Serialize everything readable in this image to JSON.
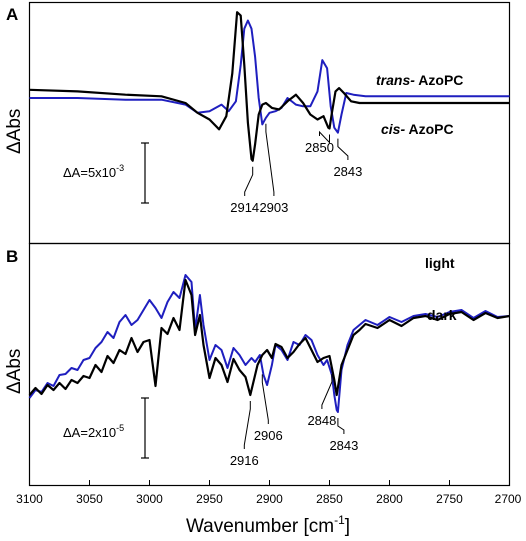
{
  "chart_data": [
    {
      "type": "line",
      "panel_label": "A",
      "ylabel": "ΔAbs",
      "xlim": [
        3100,
        2700
      ],
      "scalebar": {
        "label": "ΔA=5x10",
        "exponent": "-3"
      },
      "series": [
        {
          "name": "trans- AzoPC",
          "name_italic": "trans-",
          "name_rest": " AzoPC",
          "color": "#1f1fbf",
          "x": [
            3100,
            3060,
            3020,
            2990,
            2970,
            2960,
            2950,
            2940,
            2934,
            2928,
            2924,
            2921,
            2918,
            2915,
            2912,
            2909,
            2906,
            2903,
            2900,
            2895,
            2890,
            2885,
            2878,
            2872,
            2866,
            2860,
            2856,
            2852,
            2849,
            2846,
            2843,
            2840,
            2836,
            2830,
            2820,
            2800,
            2760,
            2720,
            2700
          ],
          "y": [
            0.0,
            0.0,
            -0.1,
            -0.1,
            -0.4,
            -0.9,
            -0.8,
            -0.4,
            -0.8,
            -0.2,
            2.0,
            4.2,
            4.7,
            4.2,
            2.5,
            0.0,
            -1.6,
            -1.2,
            -0.9,
            -0.8,
            -0.6,
            0.0,
            -0.4,
            -0.5,
            -0.5,
            0.4,
            2.3,
            1.8,
            -0.5,
            -1.8,
            -2.1,
            -1.0,
            0.3,
            0.2,
            0.1,
            0.1,
            0.1,
            0.1,
            0.1
          ]
        },
        {
          "name": "cis- AzoPC",
          "name_italic": "cis-",
          "name_rest": " AzoPC",
          "color": "#000000",
          "x": [
            3100,
            3060,
            3020,
            2990,
            2970,
            2960,
            2950,
            2942,
            2936,
            2931,
            2927,
            2924,
            2921,
            2918,
            2915,
            2914,
            2912,
            2909,
            2906,
            2903,
            2898,
            2892,
            2885,
            2878,
            2872,
            2866,
            2860,
            2855,
            2851,
            2850,
            2848,
            2845,
            2842,
            2838,
            2832,
            2825,
            2815,
            2780,
            2740,
            2700
          ],
          "y": [
            0.5,
            0.4,
            0.2,
            0.1,
            -0.3,
            -0.9,
            -1.3,
            -1.9,
            -1.1,
            1.5,
            5.2,
            5.0,
            2.0,
            -1.5,
            -3.7,
            -3.8,
            -2.8,
            -1.0,
            -0.4,
            -0.3,
            -0.6,
            -0.7,
            -0.2,
            0.2,
            -0.3,
            -1.0,
            -1.3,
            -1.1,
            -1.8,
            -1.85,
            -0.9,
            0.4,
            0.6,
            0.3,
            -0.2,
            -0.3,
            -0.3,
            -0.3,
            -0.3,
            -0.3
          ]
        }
      ],
      "annotations": [
        {
          "text": "2914",
          "x": 2914,
          "series": 1
        },
        {
          "text": "2903",
          "x": 2903,
          "series": 0
        },
        {
          "text": "2850",
          "x": 2850,
          "series": 1
        },
        {
          "text": "2843",
          "x": 2843,
          "series": 0
        }
      ]
    },
    {
      "type": "line",
      "panel_label": "B",
      "ylabel": "ΔAbs",
      "xlabel": "Wavenumber [cm",
      "xlabel_sup": "-1",
      "xlabel_end": "]",
      "xlim": [
        3100,
        2700
      ],
      "xticks": [
        3100,
        3050,
        3000,
        2950,
        2900,
        2850,
        2800,
        2750,
        2700
      ],
      "scalebar": {
        "label": "ΔA=2x10",
        "exponent": "-5"
      },
      "series": [
        {
          "name": "light",
          "color": "#1f1fbf",
          "x": [
            3100,
            3095,
            3090,
            3085,
            3080,
            3075,
            3070,
            3065,
            3060,
            3055,
            3050,
            3045,
            3040,
            3035,
            3030,
            3025,
            3020,
            3015,
            3010,
            3005,
            3000,
            2995,
            2990,
            2985,
            2980,
            2975,
            2970,
            2965,
            2962,
            2958,
            2955,
            2950,
            2945,
            2940,
            2935,
            2930,
            2925,
            2920,
            2915,
            2912,
            2908,
            2905,
            2902,
            2898,
            2895,
            2890,
            2885,
            2880,
            2875,
            2870,
            2865,
            2860,
            2855,
            2852,
            2848,
            2846,
            2844,
            2843,
            2840,
            2835,
            2830,
            2825,
            2820,
            2810,
            2800,
            2790,
            2780,
            2770,
            2760,
            2750,
            2740,
            2730,
            2720,
            2710,
            2700
          ],
          "y": [
            -4.8,
            -4.0,
            -4.2,
            -3.3,
            -3.6,
            -2.5,
            -2.4,
            -1.8,
            -2.0,
            -1.0,
            -0.8,
            0.2,
            0.8,
            1.8,
            1.2,
            2.8,
            3.5,
            2.5,
            3.0,
            4.0,
            5.0,
            4.2,
            3.2,
            4.8,
            5.8,
            5.2,
            7.5,
            6.8,
            2.0,
            5.5,
            2.5,
            -1.0,
            0.5,
            0.0,
            -1.8,
            0.2,
            -0.5,
            -1.5,
            -0.8,
            -1.2,
            -0.5,
            -2.5,
            -3.5,
            -1.5,
            0.5,
            0.0,
            -1.0,
            0.8,
            0.5,
            1.5,
            1.0,
            -0.5,
            -1.5,
            -1.0,
            -2.5,
            -4.5,
            -6.0,
            -6.2,
            -2.0,
            0.5,
            2.0,
            2.5,
            3.0,
            2.5,
            3.3,
            2.8,
            3.4,
            3.6,
            3.3,
            3.8,
            4.0,
            3.2,
            3.9,
            3.3,
            3.4
          ]
        },
        {
          "name": "dark",
          "color": "#000000",
          "x": [
            3100,
            3095,
            3090,
            3085,
            3080,
            3075,
            3070,
            3065,
            3060,
            3055,
            3050,
            3045,
            3040,
            3035,
            3030,
            3025,
            3020,
            3015,
            3010,
            3005,
            3000,
            2995,
            2990,
            2985,
            2980,
            2975,
            2970,
            2965,
            2962,
            2958,
            2955,
            2950,
            2945,
            2940,
            2935,
            2930,
            2925,
            2920,
            2916,
            2913,
            2910,
            2906,
            2902,
            2898,
            2895,
            2890,
            2885,
            2880,
            2875,
            2870,
            2865,
            2860,
            2855,
            2850,
            2848,
            2846,
            2844,
            2840,
            2835,
            2830,
            2825,
            2820,
            2810,
            2800,
            2790,
            2780,
            2770,
            2760,
            2750,
            2740,
            2730,
            2720,
            2710,
            2700
          ],
          "y": [
            -4.5,
            -3.8,
            -4.4,
            -3.5,
            -4.0,
            -3.3,
            -3.9,
            -3.0,
            -3.3,
            -2.6,
            -2.8,
            -1.5,
            -2.2,
            -0.6,
            -1.3,
            0.0,
            -0.4,
            1.2,
            -0.2,
            0.8,
            1.0,
            -3.6,
            2.2,
            1.6,
            3.2,
            2.0,
            7.0,
            5.5,
            1.5,
            3.5,
            0.5,
            -2.8,
            -0.8,
            -1.5,
            -3.2,
            -0.9,
            -2.0,
            -2.7,
            -4.5,
            -3.0,
            -1.5,
            -0.5,
            0.0,
            -0.8,
            0.6,
            0.3,
            -0.8,
            -0.2,
            0.6,
            1.2,
            0.0,
            -1.2,
            -0.8,
            -0.6,
            -1.8,
            -3.0,
            -4.5,
            -1.5,
            0.0,
            1.5,
            2.0,
            2.6,
            2.2,
            3.0,
            2.4,
            3.2,
            3.4,
            3.0,
            3.6,
            3.8,
            3.0,
            3.7,
            3.2,
            3.4
          ]
        }
      ],
      "annotations": [
        {
          "text": "2916",
          "x": 2916,
          "series": 1
        },
        {
          "text": "2906",
          "x": 2906,
          "series": 0
        },
        {
          "text": "2848",
          "x": 2848,
          "series": 1
        },
        {
          "text": "2843",
          "x": 2843,
          "series": 0
        }
      ]
    }
  ]
}
